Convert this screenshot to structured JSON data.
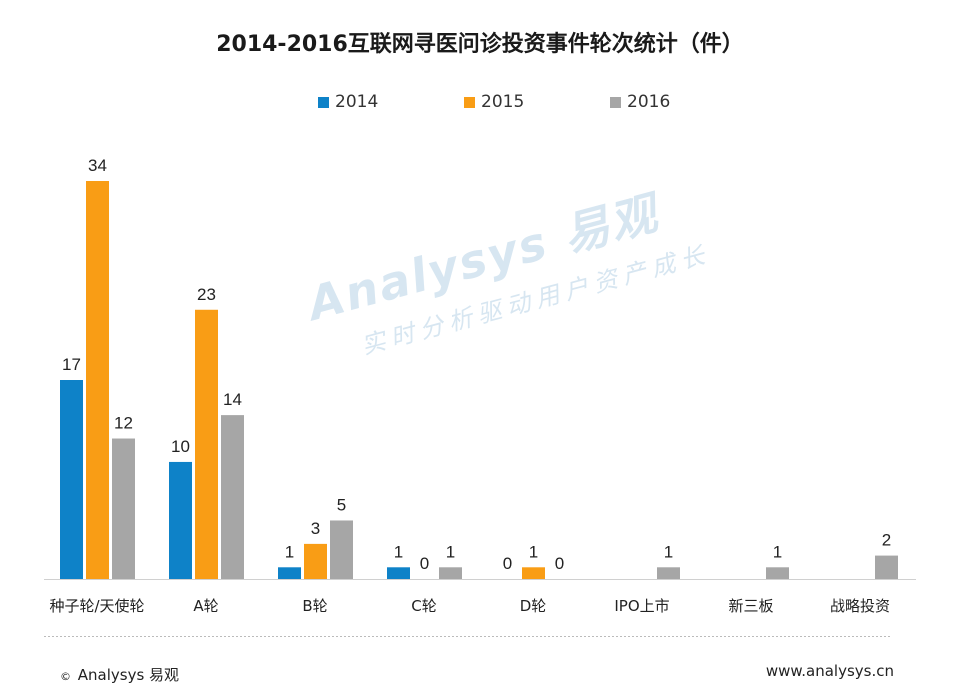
{
  "chart_data": {
    "type": "bar",
    "title": "2014-2016互联网寻医问诊投资事件轮次统计（件）",
    "categories": [
      "种子轮/天使轮",
      "A轮",
      "B轮",
      "C轮",
      "D轮",
      "IPO上市",
      "新三板",
      "战略投资"
    ],
    "series": [
      {
        "name": "2014",
        "color": "#0E82C8",
        "values": [
          17,
          10,
          1,
          1,
          0,
          null,
          null,
          null
        ]
      },
      {
        "name": "2015",
        "color": "#F99D15",
        "values": [
          34,
          23,
          3,
          0,
          1,
          null,
          null,
          null
        ]
      },
      {
        "name": "2016",
        "color": "#A6A6A6",
        "values": [
          12,
          14,
          5,
          1,
          0,
          1,
          1,
          2
        ]
      }
    ],
    "ylim": [
      0,
      34
    ],
    "grid": false,
    "legend_position": "top-center"
  },
  "watermark": {
    "brand": "Analysys 易观",
    "slogan": "实时分析驱动用户资产成长"
  },
  "footer": {
    "copyright_symbol": "©",
    "brand": "Analysys 易观",
    "url": "www.analysys.cn"
  }
}
